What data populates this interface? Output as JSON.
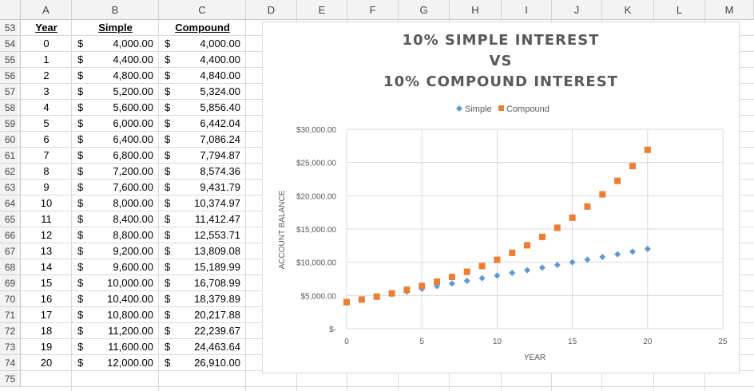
{
  "columns": [
    "A",
    "B",
    "C",
    "D",
    "E",
    "F",
    "G",
    "H",
    "I",
    "J",
    "K",
    "L",
    "M"
  ],
  "rows": [
    "53",
    "54",
    "55",
    "56",
    "57",
    "58",
    "59",
    "60",
    "61",
    "62",
    "63",
    "64",
    "65",
    "66",
    "67",
    "68",
    "69",
    "70",
    "71",
    "72",
    "73",
    "74",
    "75"
  ],
  "table": {
    "headers": {
      "year": "Year",
      "simple": "Simple",
      "compound": "Compound"
    },
    "currency_symbol": "$",
    "data": [
      {
        "year": "0",
        "simple": "4,000.00",
        "compound": "4,000.00"
      },
      {
        "year": "1",
        "simple": "4,400.00",
        "compound": "4,400.00"
      },
      {
        "year": "2",
        "simple": "4,800.00",
        "compound": "4,840.00"
      },
      {
        "year": "3",
        "simple": "5,200.00",
        "compound": "5,324.00"
      },
      {
        "year": "4",
        "simple": "5,600.00",
        "compound": "5,856.40"
      },
      {
        "year": "5",
        "simple": "6,000.00",
        "compound": "6,442.04"
      },
      {
        "year": "6",
        "simple": "6,400.00",
        "compound": "7,086.24"
      },
      {
        "year": "7",
        "simple": "6,800.00",
        "compound": "7,794.87"
      },
      {
        "year": "8",
        "simple": "7,200.00",
        "compound": "8,574.36"
      },
      {
        "year": "9",
        "simple": "7,600.00",
        "compound": "9,431.79"
      },
      {
        "year": "10",
        "simple": "8,000.00",
        "compound": "10,374.97"
      },
      {
        "year": "11",
        "simple": "8,400.00",
        "compound": "11,412.47"
      },
      {
        "year": "12",
        "simple": "8,800.00",
        "compound": "12,553.71"
      },
      {
        "year": "13",
        "simple": "9,200.00",
        "compound": "13,809.08"
      },
      {
        "year": "14",
        "simple": "9,600.00",
        "compound": "15,189.99"
      },
      {
        "year": "15",
        "simple": "10,000.00",
        "compound": "16,708.99"
      },
      {
        "year": "16",
        "simple": "10,400.00",
        "compound": "18,379.89"
      },
      {
        "year": "17",
        "simple": "10,800.00",
        "compound": "20,217.88"
      },
      {
        "year": "18",
        "simple": "11,200.00",
        "compound": "22,239.67"
      },
      {
        "year": "19",
        "simple": "11,600.00",
        "compound": "24,463.64"
      },
      {
        "year": "20",
        "simple": "12,000.00",
        "compound": "26,910.00"
      }
    ]
  },
  "chart_data": {
    "type": "scatter",
    "title_lines": [
      "10% SIMPLE INTEREST",
      "VS",
      "10% COMPOUND INTEREST"
    ],
    "xlabel": "YEAR",
    "ylabel": "ACCOUNT BALANCE",
    "xlim": [
      0,
      25
    ],
    "ylim": [
      0,
      30000
    ],
    "xticks": [
      "0",
      "5",
      "10",
      "15",
      "20",
      "25"
    ],
    "yticks": [
      "$-",
      "$5,000.00",
      "$10,000.00",
      "$15,000.00",
      "$20,000.00",
      "$25,000.00",
      "$30,000.00"
    ],
    "legend_position": "top",
    "grid": true,
    "series": [
      {
        "name": "Simple",
        "marker": "diamond",
        "color": "#5b9bd5",
        "x": [
          0,
          1,
          2,
          3,
          4,
          5,
          6,
          7,
          8,
          9,
          10,
          11,
          12,
          13,
          14,
          15,
          16,
          17,
          18,
          19,
          20
        ],
        "y": [
          4000,
          4400,
          4800,
          5200,
          5600,
          6000,
          6400,
          6800,
          7200,
          7600,
          8000,
          8400,
          8800,
          9200,
          9600,
          10000,
          10400,
          10800,
          11200,
          11600,
          12000
        ]
      },
      {
        "name": "Compound",
        "marker": "square",
        "color": "#ed7d31",
        "x": [
          0,
          1,
          2,
          3,
          4,
          5,
          6,
          7,
          8,
          9,
          10,
          11,
          12,
          13,
          14,
          15,
          16,
          17,
          18,
          19,
          20
        ],
        "y": [
          4000,
          4400,
          4840,
          5324,
          5856.4,
          6442.04,
          7086.24,
          7794.87,
          8574.36,
          9431.79,
          10374.97,
          11412.47,
          12553.71,
          13809.08,
          15189.99,
          16708.99,
          18379.89,
          20217.88,
          22239.67,
          24463.64,
          26910
        ]
      }
    ]
  }
}
